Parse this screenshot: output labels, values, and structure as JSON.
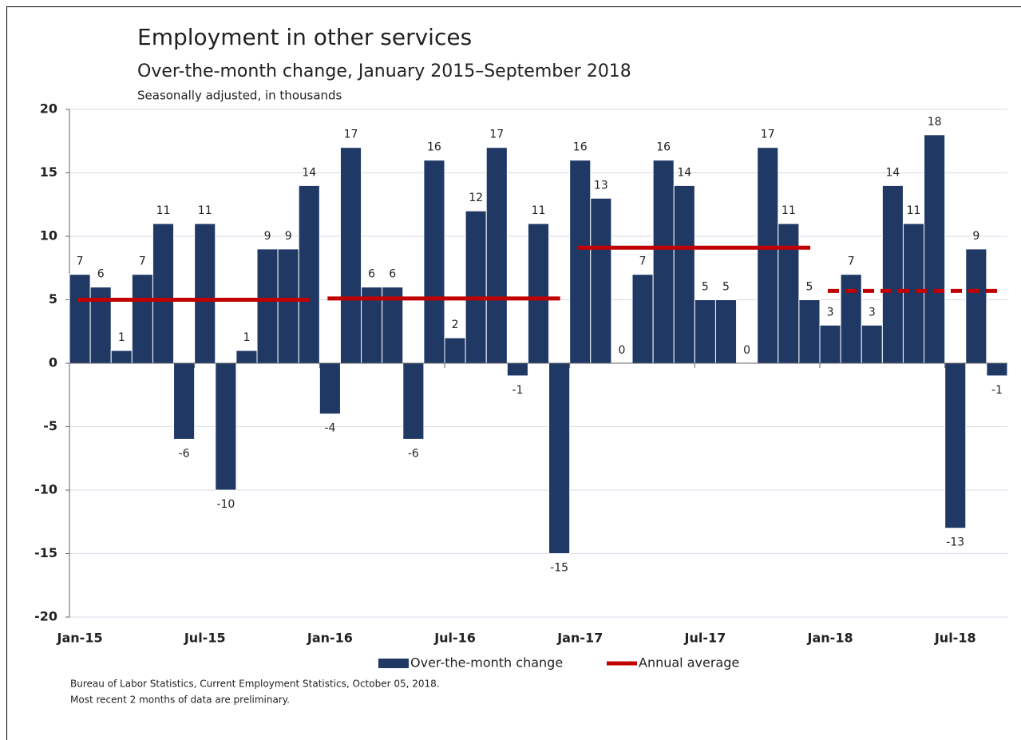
{
  "chart_data": {
    "type": "bar",
    "title": "Employment in other services",
    "subtitle": "Over-the-month change, January 2015–September 2018",
    "y_axis_label": "Seasonally adjusted, in thousands",
    "categories": [
      "Jan-15",
      null,
      null,
      null,
      null,
      null,
      "Jul-15",
      null,
      null,
      null,
      null,
      null,
      "Jan-16",
      null,
      null,
      null,
      null,
      null,
      "Jul-16",
      null,
      null,
      null,
      null,
      null,
      "Jan-17",
      null,
      null,
      null,
      null,
      null,
      "Jul-17",
      null,
      null,
      null,
      null,
      null,
      "Jan-18",
      null,
      null,
      null,
      null,
      null,
      "Jul-18",
      null,
      null
    ],
    "series": [
      {
        "name": "Over-the-month change",
        "color": "#1f3864",
        "values": [
          7,
          6,
          1,
          7,
          11,
          -6,
          11,
          -10,
          1,
          9,
          9,
          14,
          -4,
          17,
          6,
          6,
          -6,
          16,
          2,
          12,
          17,
          -1,
          11,
          -15,
          16,
          13,
          0,
          7,
          16,
          14,
          5,
          5,
          0,
          17,
          11,
          5,
          3,
          7,
          3,
          14,
          11,
          18,
          -13,
          9,
          -1
        ]
      }
    ],
    "annual_average": {
      "name": "Annual average",
      "color": "#c00000",
      "values": [
        5,
        5.1,
        9.1,
        5.7
      ],
      "line_styles": [
        "solid",
        "solid",
        "solid",
        "dashed"
      ]
    },
    "ylim": [
      -20,
      20
    ],
    "yticks": [
      -20,
      -15,
      -10,
      -5,
      0,
      5,
      10,
      15,
      20
    ],
    "grid": true,
    "notes": [
      "Bureau of Labor Statistics, Current Employment Statistics, October 05, 2018.",
      "Most recent 2 months of data are preliminary."
    ]
  }
}
